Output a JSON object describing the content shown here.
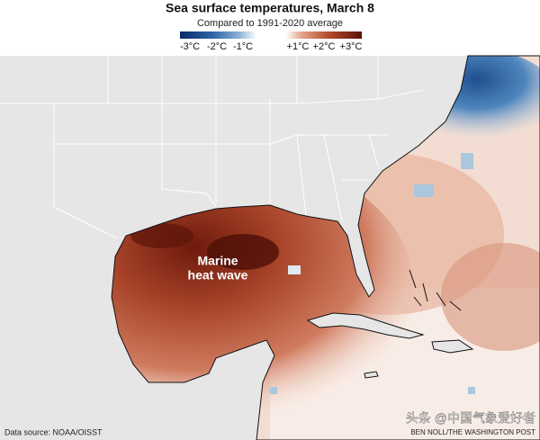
{
  "header": {
    "title": "Sea surface temperatures, March 8",
    "subtitle": "Compared to 1991-2020 average"
  },
  "legend": {
    "labels": [
      "-3°C",
      "-2°C",
      "-1°C",
      "+1°C",
      "+2°C",
      "+3°C"
    ]
  },
  "annotation": {
    "line1": "Marine",
    "line2": "heat wave"
  },
  "footer": {
    "source": "Data source: NOAA/OISST",
    "credit": "BEN NOLL/THE WASHINGTON POST",
    "watermark": "头条 @中国气象爱好者"
  }
}
